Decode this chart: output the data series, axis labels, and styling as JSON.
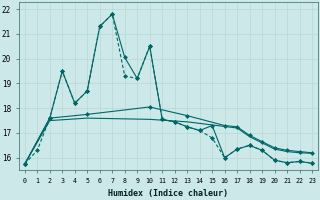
{
  "xlabel": "Humidex (Indice chaleur)",
  "bg_color": "#cce8e8",
  "plot_bg_color": "#cce8e8",
  "grid_color": "#b8d8d4",
  "line_color": "#006666",
  "xlim": [
    -0.5,
    23.5
  ],
  "ylim": [
    15.5,
    22.3
  ],
  "xticks": [
    0,
    1,
    2,
    3,
    4,
    5,
    6,
    7,
    8,
    9,
    10,
    11,
    12,
    13,
    14,
    15,
    16,
    17,
    18,
    19,
    20,
    21,
    22,
    23
  ],
  "yticks": [
    16,
    17,
    18,
    19,
    20,
    21,
    22
  ],
  "series1_x": [
    0,
    1,
    2,
    3,
    4,
    5,
    6,
    7,
    8,
    9,
    10,
    11,
    12,
    13,
    14,
    15,
    16,
    17,
    18,
    19,
    20,
    21,
    22,
    23
  ],
  "series1_y": [
    15.75,
    16.3,
    17.6,
    19.5,
    18.2,
    18.7,
    21.3,
    21.8,
    19.3,
    19.2,
    20.5,
    17.55,
    17.45,
    17.25,
    17.1,
    16.8,
    16.0,
    16.35,
    16.5,
    16.3,
    15.9,
    15.8,
    15.85,
    15.78
  ],
  "series2_x": [
    0,
    2,
    3,
    4,
    5,
    6,
    7,
    8,
    9,
    10,
    11,
    12,
    13,
    14,
    15,
    16,
    17,
    18,
    19,
    20,
    21,
    22,
    23
  ],
  "series2_y": [
    15.75,
    17.6,
    19.5,
    18.2,
    18.7,
    21.3,
    21.8,
    20.05,
    19.2,
    20.5,
    17.55,
    17.45,
    17.25,
    17.1,
    17.3,
    16.0,
    16.35,
    16.5,
    16.3,
    15.9,
    15.8,
    15.85,
    15.78
  ],
  "series3_x": [
    0,
    2,
    5,
    10,
    13,
    16,
    17,
    18,
    19,
    20,
    21,
    22,
    23
  ],
  "series3_y": [
    15.75,
    17.6,
    17.75,
    18.05,
    17.7,
    17.3,
    17.25,
    16.9,
    16.65,
    16.4,
    16.3,
    16.25,
    16.2
  ],
  "series4_x": [
    0,
    2,
    5,
    10,
    13,
    17,
    18,
    19,
    20,
    21,
    22,
    23
  ],
  "series4_y": [
    15.75,
    17.5,
    17.6,
    17.55,
    17.45,
    17.2,
    16.85,
    16.6,
    16.35,
    16.25,
    16.2,
    16.18
  ]
}
